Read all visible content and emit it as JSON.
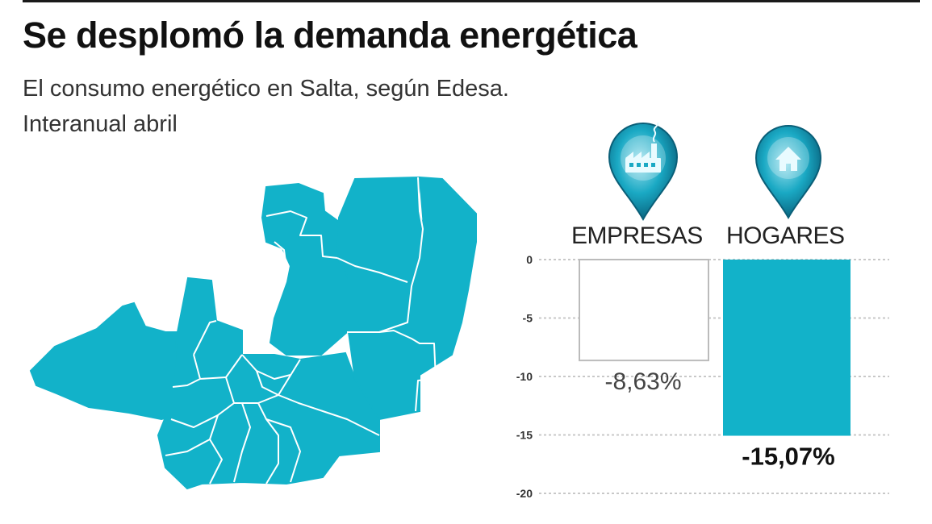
{
  "header": {
    "title": "Se desplomó la demanda energética",
    "subtitle_line1": "El consumo energético en Salta, según Edesa.",
    "subtitle_line2": "Interanual abril"
  },
  "icons": {
    "empresas": "factory-pin-icon",
    "hogares": "house-pin-icon"
  },
  "colors": {
    "accent": "#12b2c9",
    "bar_empresas_fill": "#ffffff",
    "bar_empresas_stroke": "#bbbbbb",
    "pin_dark": "#0b6e88",
    "grid": "#c8c8c8"
  },
  "chart_data": {
    "type": "bar",
    "title": "Se desplomó la demanda energética",
    "subtitle": "El consumo energético en Salta, según Edesa. Interanual abril",
    "categories": [
      "EMPRESAS",
      "HOGARES"
    ],
    "values": [
      -8.63,
      -15.07
    ],
    "value_labels": [
      "-8,63%",
      "-15,07%"
    ],
    "y_ticks": [
      0,
      -5,
      -10,
      -15,
      -20
    ],
    "ylim": [
      -20,
      0
    ],
    "grid": true
  }
}
